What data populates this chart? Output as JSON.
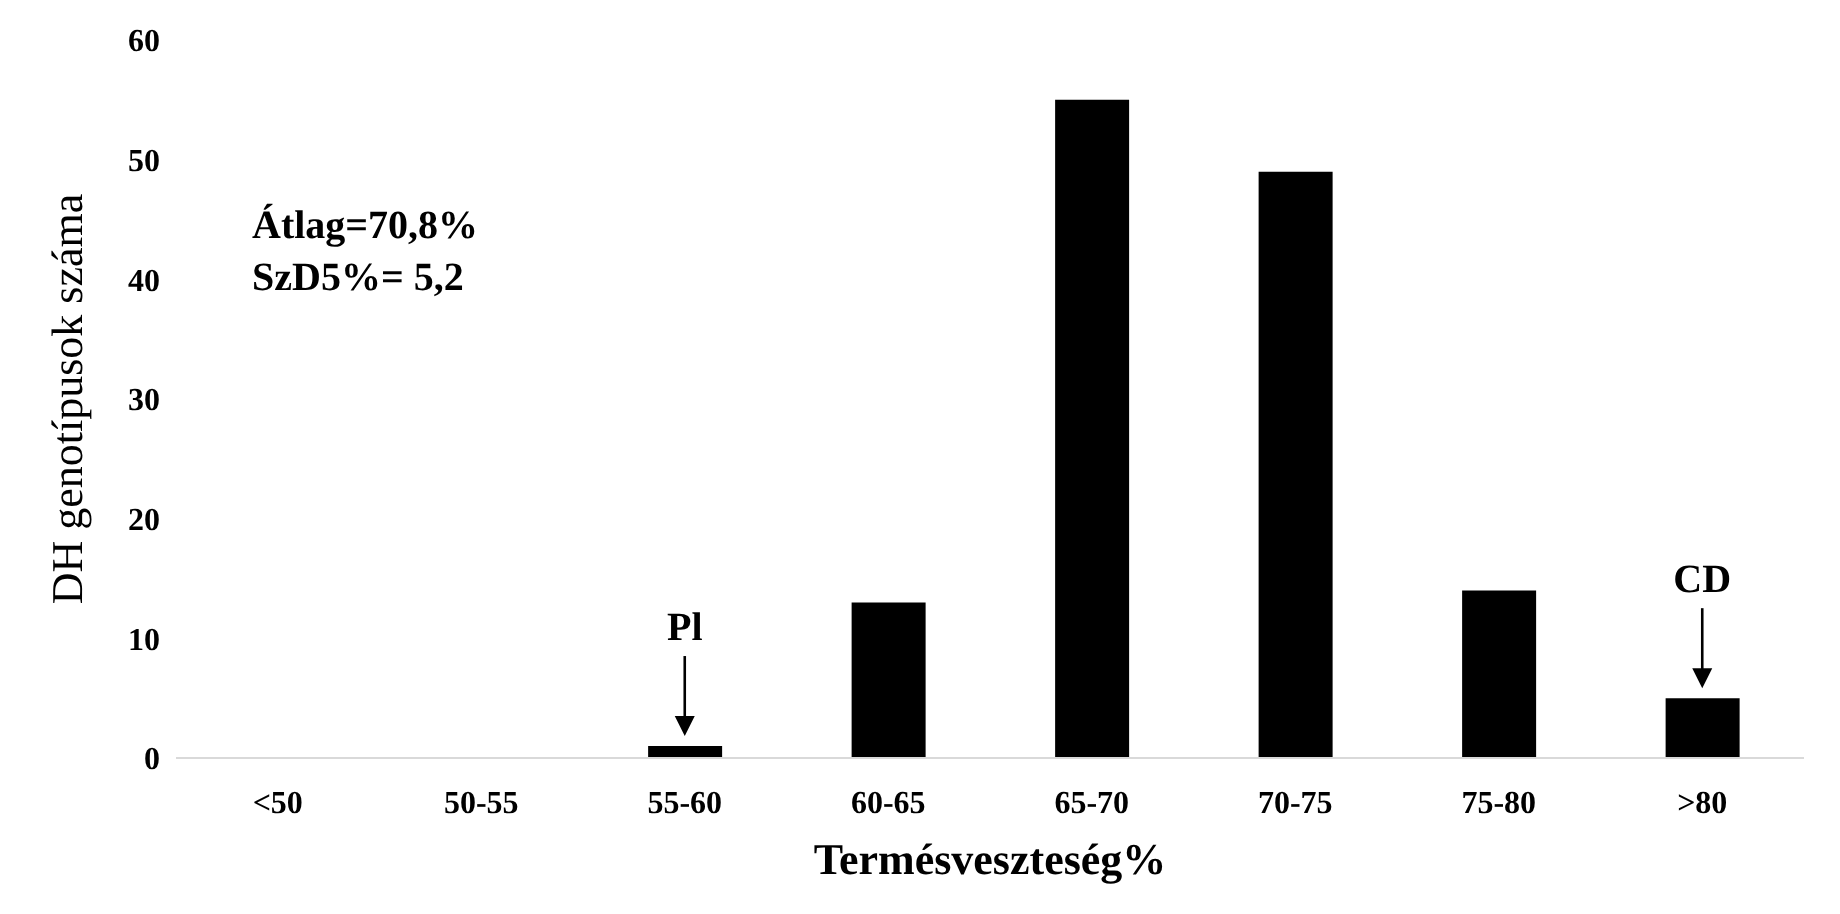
{
  "chart_data": {
    "type": "bar",
    "xlabel": "Termésveszteség%",
    "ylabel": "DH genotípusok száma",
    "categories": [
      "<50",
      "50-55",
      "55-60",
      "60-65",
      "65-70",
      "70-75",
      "75-80",
      ">80"
    ],
    "values": [
      0,
      0,
      1,
      13,
      55,
      49,
      14,
      5
    ],
    "color": "#000000",
    "ylim": [
      0,
      60
    ],
    "yticks": [
      0,
      10,
      20,
      30,
      40,
      50,
      60
    ],
    "annotations": [
      "Átlag=70,8%",
      "SzD5%= 5,2",
      {
        "text": "Pl",
        "x": "55-60",
        "y": 1
      },
      {
        "text": "CD",
        "x": ">80",
        "y": 5
      }
    ]
  }
}
